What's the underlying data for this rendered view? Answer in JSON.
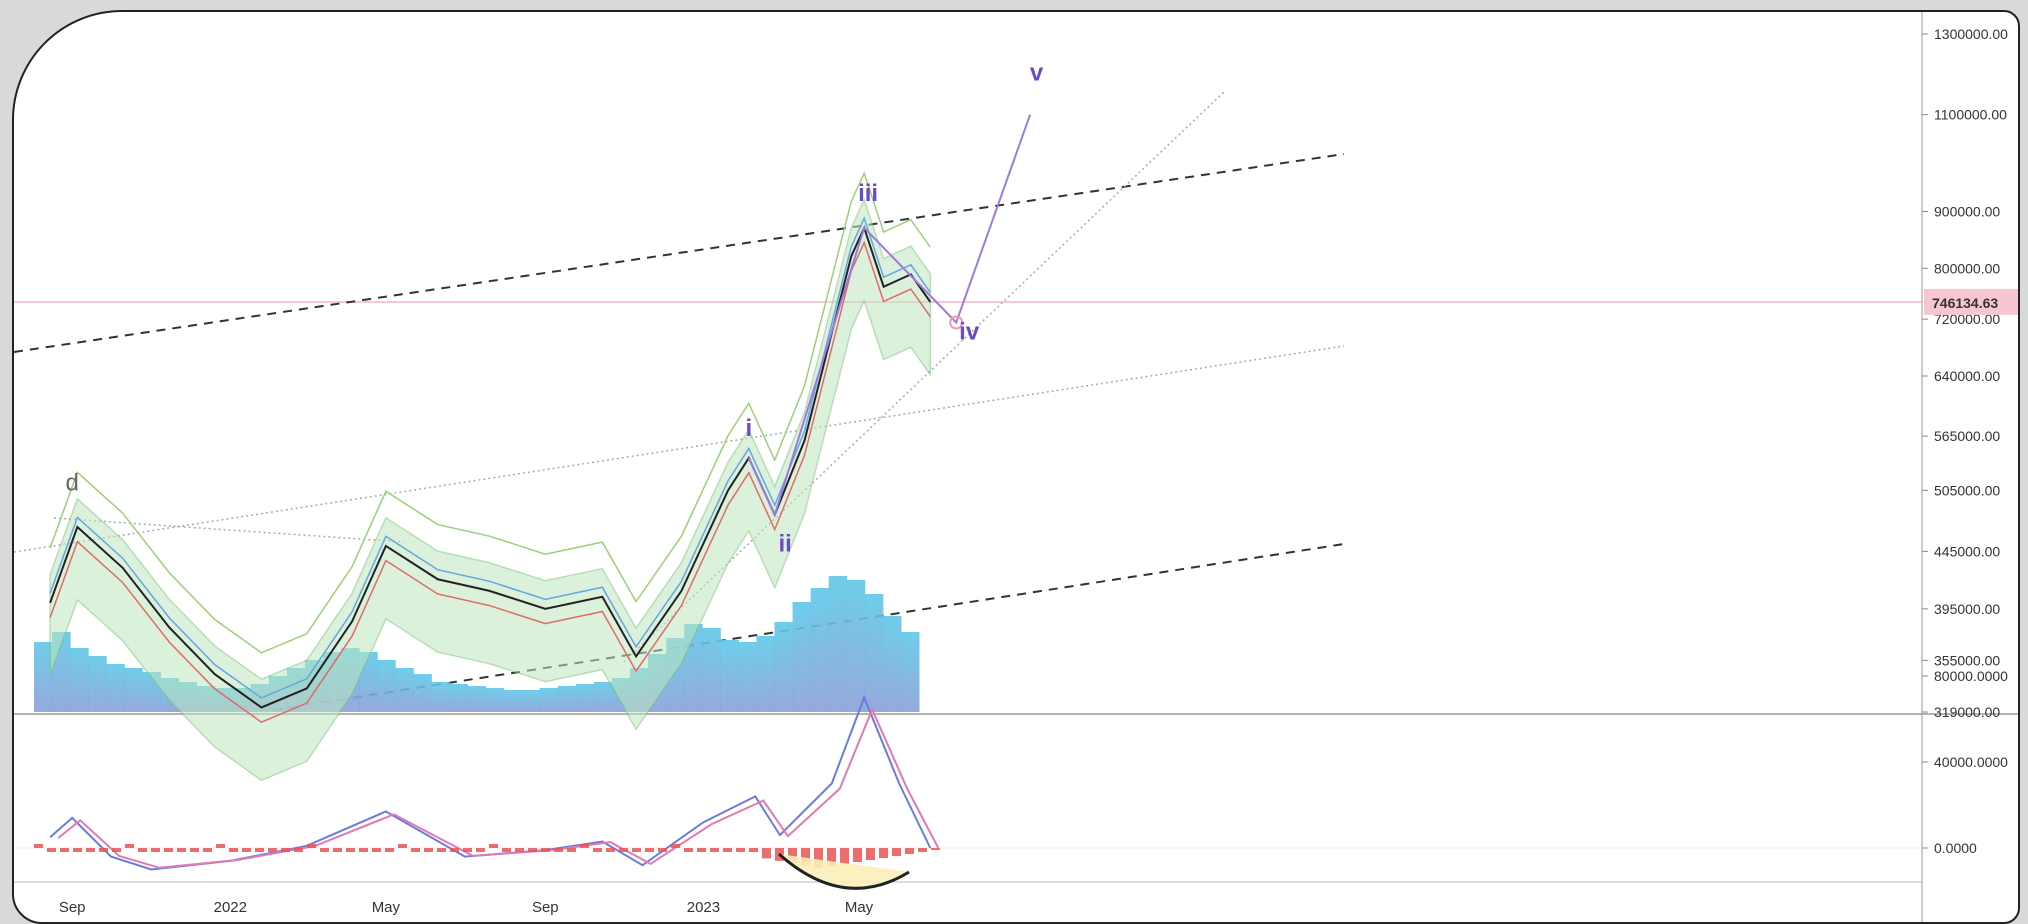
{
  "chart_data": {
    "type": "line",
    "y_scale": "log",
    "price_axis_ticks": [
      "1300000.00",
      "1100000.00",
      "900000.00",
      "800000.00",
      "720000.00",
      "640000.00",
      "565000.00",
      "505000.00",
      "445000.00",
      "395000.00",
      "355000.00",
      "319000.00"
    ],
    "price_axis_values": [
      1300000,
      1100000,
      900000,
      800000,
      720000,
      640000,
      565000,
      505000,
      445000,
      395000,
      355000,
      319000
    ],
    "current_price_label": "746134.63",
    "current_price": 746134.63,
    "oscillator_ticks": [
      "80000.0000",
      "40000.0000",
      "0.0000"
    ],
    "oscillator_values": [
      80000,
      40000,
      0
    ],
    "x_tick_labels": [
      "Sep",
      "2022",
      "May",
      "Sep",
      "2023",
      "May"
    ],
    "wave_labels": [
      "d",
      "i",
      "ii",
      "iii",
      "iv",
      "v"
    ],
    "price_series": [
      [
        "2021-08-15",
        400000
      ],
      [
        "2021-09-05",
        468000
      ],
      [
        "2021-10-10",
        430000
      ],
      [
        "2021-11-15",
        380000
      ],
      [
        "2021-12-20",
        345000
      ],
      [
        "2022-01-25",
        322000
      ],
      [
        "2022-03-01",
        335000
      ],
      [
        "2022-04-05",
        385000
      ],
      [
        "2022-05-01",
        450000
      ],
      [
        "2022-06-10",
        420000
      ],
      [
        "2022-07-20",
        410000
      ],
      [
        "2022-09-01",
        395000
      ],
      [
        "2022-10-15",
        405000
      ],
      [
        "2022-11-10",
        358000
      ],
      [
        "2022-12-15",
        410000
      ],
      [
        "2023-01-20",
        505000
      ],
      [
        "2023-02-05",
        540000
      ],
      [
        "2023-02-25",
        480000
      ],
      [
        "2023-03-20",
        560000
      ],
      [
        "2023-04-25",
        820000
      ],
      [
        "2023-05-05",
        870000
      ],
      [
        "2023-05-20",
        770000
      ],
      [
        "2023-06-10",
        790000
      ],
      [
        "2023-06-25",
        746134.63
      ]
    ],
    "projection": [
      [
        "2023-07-15",
        715000
      ],
      [
        "2023-09-10",
        1100000
      ]
    ],
    "macd_line": [
      [
        "2021-08-15",
        5000
      ],
      [
        "2021-09-01",
        14000
      ],
      [
        "2021-10-01",
        -4000
      ],
      [
        "2021-11-01",
        -10000
      ],
      [
        "2022-01-01",
        -6000
      ],
      [
        "2022-03-01",
        1000
      ],
      [
        "2022-05-01",
        17000
      ],
      [
        "2022-07-01",
        -4000
      ],
      [
        "2022-09-01",
        -1000
      ],
      [
        "2022-10-15",
        3000
      ],
      [
        "2022-11-15",
        -8000
      ],
      [
        "2023-01-01",
        12000
      ],
      [
        "2023-02-10",
        24000
      ],
      [
        "2023-03-01",
        6000
      ],
      [
        "2023-04-10",
        30000
      ],
      [
        "2023-05-05",
        70000
      ],
      [
        "2023-06-01",
        30000
      ],
      [
        "2023-06-25",
        0
      ]
    ],
    "grid": false
  }
}
